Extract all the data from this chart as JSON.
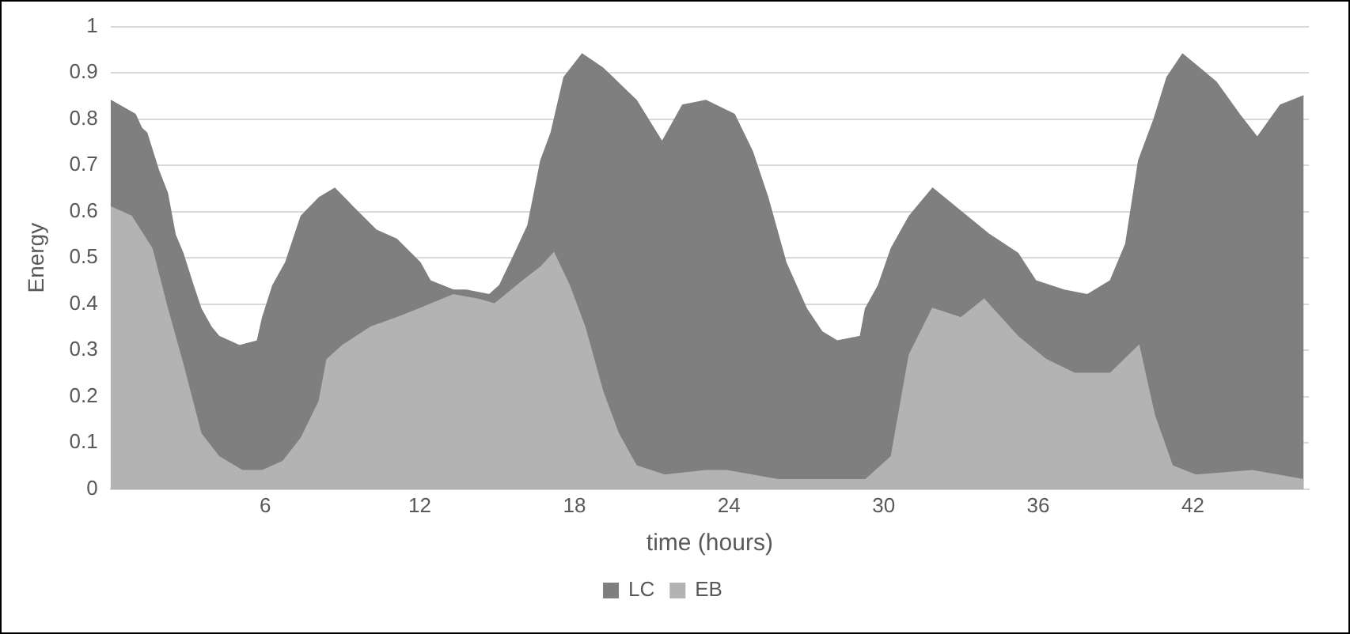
{
  "chart_data": {
    "type": "area",
    "xlabel": "time (hours)",
    "ylabel": "Energy",
    "xlim": [
      0,
      46.5
    ],
    "xticks": [
      6,
      12,
      18,
      24,
      30,
      36,
      42
    ],
    "ylim": [
      0,
      1
    ],
    "yticks": [
      0,
      0.1,
      0.2,
      0.3,
      0.4,
      0.5,
      0.6,
      0.7,
      0.8,
      0.9,
      1
    ],
    "grid": "y",
    "legend": "bottom",
    "series": [
      {
        "name": "LC",
        "color": "#7f7f7f",
        "x": [
          0,
          0.95,
          1.2,
          1.4,
          1.85,
          2.2,
          2.5,
          2.8,
          3.2,
          3.5,
          3.9,
          4.2,
          5.0,
          5.7,
          5.9,
          6.3,
          6.8,
          7.4,
          8.1,
          8.7,
          9.4,
          10.3,
          11.1,
          12.0,
          12.4,
          13.3,
          13.8,
          14.7,
          15.1,
          15.7,
          16.2,
          16.7,
          17.1,
          17.6,
          18.3,
          19.1,
          20.4,
          21.4,
          22.2,
          23.1,
          24.2,
          24.9,
          25.5,
          26.2,
          27.0,
          27.6,
          28.2,
          29.1,
          29.3,
          29.8,
          30.3,
          31.0,
          31.9,
          33.0,
          34.1,
          35.2,
          35.9,
          37.0,
          37.9,
          38.8,
          39.4,
          39.9,
          40.5,
          41.0,
          41.6,
          42.9,
          43.8,
          44.5,
          45.4,
          46.3
        ],
        "values": [
          0.84,
          0.81,
          0.78,
          0.77,
          0.69,
          0.64,
          0.55,
          0.51,
          0.44,
          0.39,
          0.35,
          0.33,
          0.31,
          0.32,
          0.37,
          0.44,
          0.49,
          0.59,
          0.63,
          0.65,
          0.61,
          0.56,
          0.54,
          0.49,
          0.45,
          0.43,
          0.43,
          0.42,
          0.44,
          0.51,
          0.57,
          0.71,
          0.77,
          0.89,
          0.94,
          0.91,
          0.84,
          0.75,
          0.83,
          0.84,
          0.81,
          0.73,
          0.63,
          0.49,
          0.39,
          0.34,
          0.32,
          0.33,
          0.39,
          0.44,
          0.52,
          0.59,
          0.65,
          0.6,
          0.55,
          0.51,
          0.45,
          0.43,
          0.42,
          0.45,
          0.53,
          0.71,
          0.8,
          0.89,
          0.94,
          0.88,
          0.81,
          0.76,
          0.83,
          0.85
        ]
      },
      {
        "name": "EB",
        "color": "#b3b3b3",
        "x": [
          0,
          0.8,
          1.6,
          2.2,
          2.8,
          3.5,
          4.2,
          5.1,
          5.9,
          6.7,
          7.4,
          8.1,
          8.4,
          9.0,
          10.1,
          11.1,
          12.0,
          13.3,
          14.3,
          14.9,
          16.0,
          16.7,
          17.2,
          17.8,
          18.4,
          19.1,
          19.7,
          20.4,
          21.5,
          23.1,
          23.9,
          25.9,
          29.3,
          30.3,
          31.0,
          31.9,
          33.0,
          33.9,
          35.2,
          36.3,
          37.4,
          38.8,
          39.9,
          40.5,
          41.2,
          42.1,
          44.3,
          46.3
        ],
        "values": [
          0.61,
          0.59,
          0.52,
          0.39,
          0.27,
          0.12,
          0.07,
          0.04,
          0.04,
          0.06,
          0.11,
          0.19,
          0.28,
          0.31,
          0.35,
          0.37,
          0.39,
          0.42,
          0.41,
          0.4,
          0.45,
          0.48,
          0.51,
          0.44,
          0.35,
          0.21,
          0.12,
          0.05,
          0.03,
          0.04,
          0.04,
          0.02,
          0.02,
          0.07,
          0.29,
          0.39,
          0.37,
          0.41,
          0.33,
          0.28,
          0.25,
          0.25,
          0.31,
          0.16,
          0.05,
          0.03,
          0.04,
          0.02
        ]
      }
    ]
  }
}
